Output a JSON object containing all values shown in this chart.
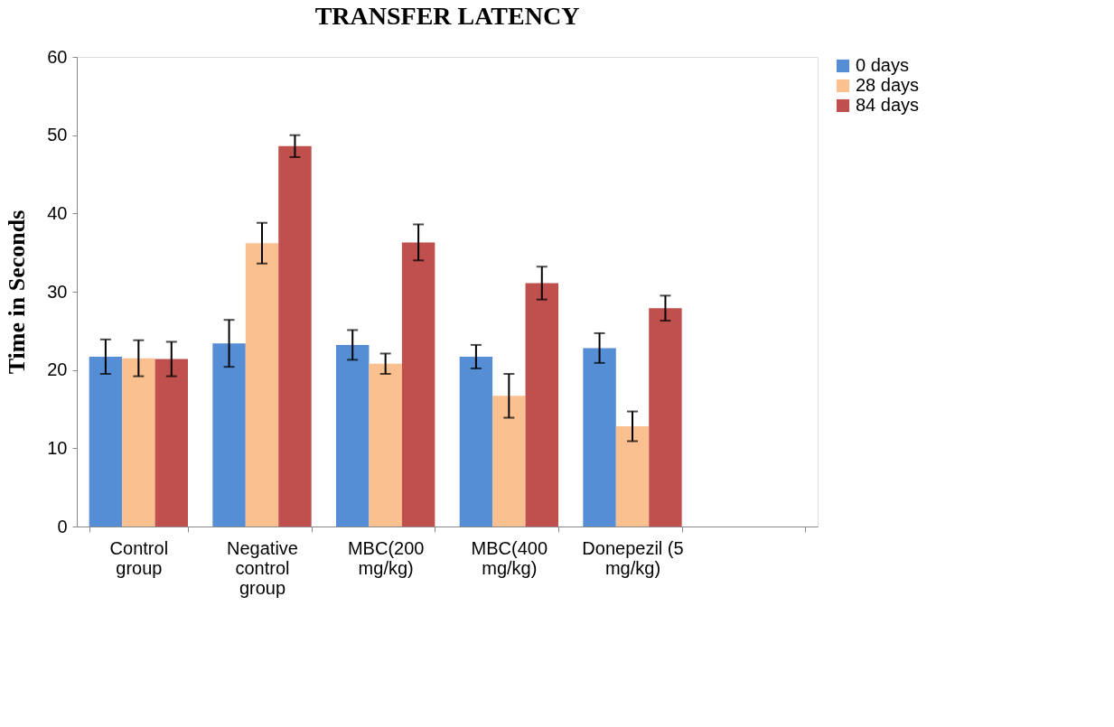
{
  "chart_data": {
    "type": "bar",
    "title": "TRANSFER LATENCY",
    "ylabel": "Time in Seconds",
    "categories": [
      "Control group",
      "Negative control group",
      "MBC(200 mg/kg)",
      "MBC(400 mg/kg)",
      "Donepezil (5 mg/kg)",
      null
    ],
    "series": [
      {
        "name": "0 days",
        "color": "#558ed5",
        "values": [
          21.7,
          23.4,
          23.2,
          21.7,
          22.8,
          null
        ],
        "errors": [
          2.2,
          3.0,
          1.9,
          1.5,
          1.9,
          null
        ]
      },
      {
        "name": "28 days",
        "color": "#fac090",
        "values": [
          21.5,
          36.2,
          20.8,
          16.7,
          12.8,
          null
        ],
        "errors": [
          2.3,
          2.6,
          1.3,
          2.8,
          1.9,
          null
        ]
      },
      {
        "name": "84 days",
        "color": "#c0504d",
        "values": [
          21.4,
          48.6,
          36.3,
          31.1,
          27.9,
          null
        ],
        "errors": [
          2.2,
          1.4,
          2.3,
          2.1,
          1.6,
          null
        ]
      }
    ],
    "ylim": [
      0,
      60
    ],
    "yticks": [
      0,
      10,
      20,
      30,
      40,
      50,
      60
    ],
    "grid": false,
    "legend": "right"
  }
}
